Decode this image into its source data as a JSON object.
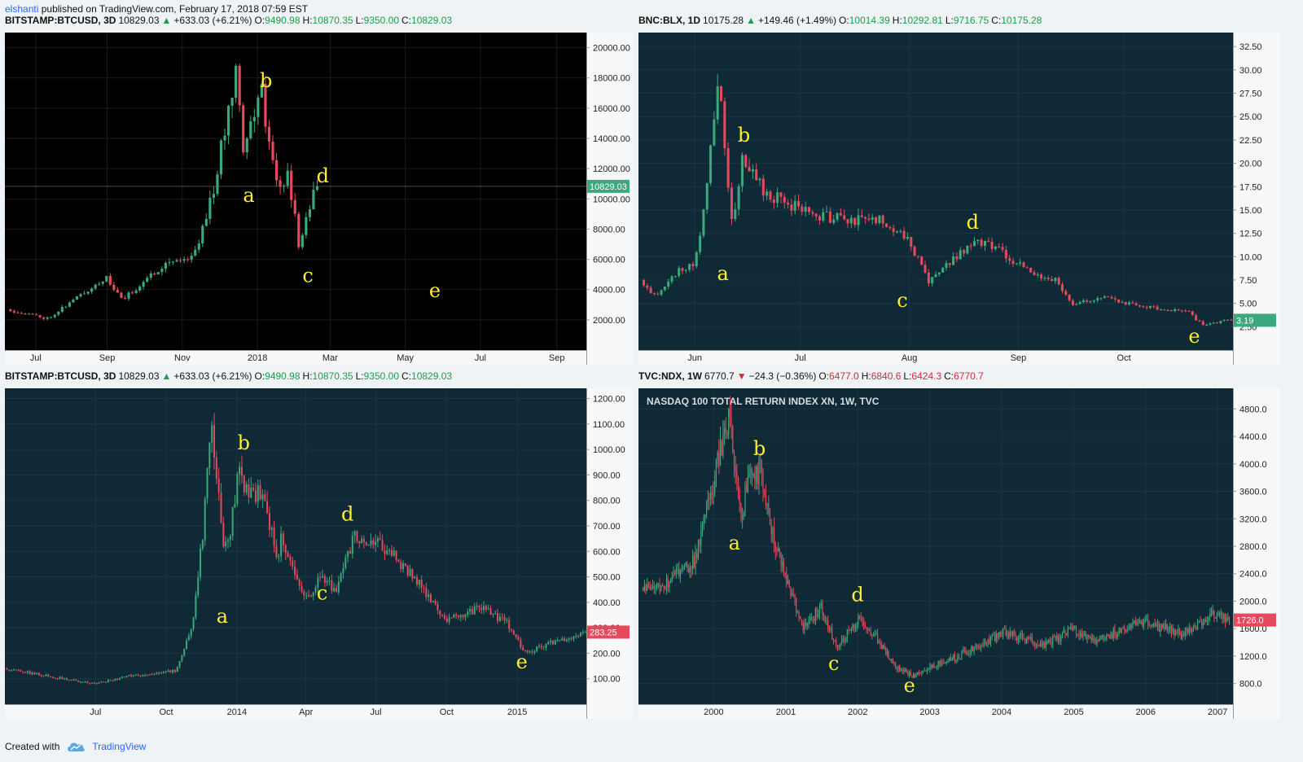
{
  "header": {
    "user": "elshanti",
    "rest": "published on TradingView.com, February 17, 2018 07:59 EST"
  },
  "footer": {
    "created": "Created with",
    "brand": "TradingView",
    "logo_icon": "tradingview-cloud-icon"
  },
  "panels": [
    {
      "id": "btc2018",
      "legend": {
        "symbol": "BITSTAMP:BTCUSD, 3D",
        "last": "10829.03",
        "change": "+633.03 (+6.21%)",
        "dir": "up",
        "o_label": "O:",
        "o": "9490.98",
        "h_label": "H:",
        "h": "10870.35",
        "l_label": "L:",
        "l": "9350.00",
        "c_label": "C:",
        "c": "10829.03"
      },
      "watermark": "",
      "colors": {
        "bg": "#000000",
        "up": "#3aa97b",
        "down": "#e5495b",
        "grid": "#1b1b1b",
        "axis": "#d1d4dc",
        "axis_text": "#222222",
        "label": "#ffee33"
      },
      "last_price": "10829.03",
      "last_dir": "up",
      "chart_data": {
        "type": "candlestick",
        "ylim": [
          0,
          21000
        ],
        "x_domain": [
          "2017-06-10",
          "2018-09-25"
        ],
        "yticks": [
          "2000.00",
          "4000.00",
          "6000.00",
          "8000.00",
          "10000.00",
          "12000.00",
          "14000.00",
          "16000.00",
          "18000.00",
          "20000.00"
        ],
        "xticks": [
          {
            "t": "2017-07-05",
            "label": "Jul"
          },
          {
            "t": "2017-09-01",
            "label": "Sep"
          },
          {
            "t": "2017-11-01",
            "label": "Nov"
          },
          {
            "t": "2018-01-01",
            "label": "2018"
          },
          {
            "t": "2018-03-01",
            "label": "Mar"
          },
          {
            "t": "2018-05-01",
            "label": "May"
          },
          {
            "t": "2018-07-01",
            "label": "Jul"
          },
          {
            "t": "2018-09-01",
            "label": "Sep"
          }
        ],
        "series_start": "2017-06-13",
        "series_end": "2018-02-17",
        "candle_days": 3,
        "anchors": [
          [
            "2017-06-13",
            2700
          ],
          [
            "2017-07-16",
            2100
          ],
          [
            "2017-08-20",
            4100
          ],
          [
            "2017-09-01",
            4800
          ],
          [
            "2017-09-15",
            3300
          ],
          [
            "2017-10-20",
            5800
          ],
          [
            "2017-11-12",
            6200
          ],
          [
            "2017-11-29",
            11000
          ],
          [
            "2017-12-17",
            19200
          ],
          [
            "2017-12-22",
            13500
          ],
          [
            "2018-01-06",
            17100
          ],
          [
            "2018-01-17",
            11000
          ],
          [
            "2018-01-28",
            11500
          ],
          [
            "2018-02-06",
            6400
          ],
          [
            "2018-02-10",
            8600
          ],
          [
            "2018-02-14",
            9500
          ],
          [
            "2018-02-17",
            10829
          ]
        ],
        "labels": [
          {
            "t": "a",
            "x": "2017-12-25",
            "y": 9800
          },
          {
            "t": "b",
            "x": "2018-01-08",
            "y": 17400
          },
          {
            "t": "c",
            "x": "2018-02-11",
            "y": 4500
          },
          {
            "t": "d",
            "x": "2018-02-23",
            "y": 11100
          },
          {
            "t": "e",
            "x": "2018-05-25",
            "y": 3500
          }
        ],
        "seed": 11
      }
    },
    {
      "id": "blx",
      "legend": {
        "symbol": "BNC:BLX, 1D",
        "last": "10175.28",
        "change": "+149.46 (+1.49%)",
        "dir": "up",
        "o_label": "O:",
        "o": "10014.39",
        "h_label": "H:",
        "h": "10292.81",
        "l_label": "L:",
        "l": "9716.75",
        "c_label": "C:",
        "c": "10175.28"
      },
      "watermark": "",
      "colors": {
        "bg": "#0f2a36",
        "up": "#3aa97b",
        "down": "#e5495b",
        "grid": "#1a3644",
        "axis": "#d1d4dc",
        "axis_text": "#222222",
        "label": "#ffee33"
      },
      "last_price": "3.19",
      "last_dir": "up",
      "chart_data": {
        "type": "candlestick",
        "ylim": [
          0,
          34
        ],
        "x_domain": [
          "2017-05-16",
          "2017-11-01"
        ],
        "yticks": [
          "2.50",
          "5.00",
          "7.50",
          "10.00",
          "12.50",
          "15.00",
          "17.50",
          "20.00",
          "22.50",
          "25.00",
          "27.50",
          "30.00",
          "32.50"
        ],
        "xticks": [
          {
            "t": "2017-06-01",
            "label": "Jun"
          },
          {
            "t": "2017-07-01",
            "label": "Jul"
          },
          {
            "t": "2017-08-01",
            "label": "Aug"
          },
          {
            "t": "2017-09-01",
            "label": "Sep"
          },
          {
            "t": "2017-10-01",
            "label": "Oct"
          }
        ],
        "series_start": "2017-05-17",
        "series_end": "2017-10-31",
        "candle_days": 1,
        "anchors": [
          [
            "2017-05-17",
            7.5
          ],
          [
            "2017-05-21",
            5.8
          ],
          [
            "2017-05-28",
            8.5
          ],
          [
            "2017-06-01",
            9.0
          ],
          [
            "2017-06-04",
            14.5
          ],
          [
            "2017-06-08",
            29.5
          ],
          [
            "2017-06-12",
            13.5
          ],
          [
            "2017-06-15",
            20.0
          ],
          [
            "2017-06-22",
            16.8
          ],
          [
            "2017-07-03",
            14.8
          ],
          [
            "2017-07-15",
            13.8
          ],
          [
            "2017-07-25",
            14.0
          ],
          [
            "2017-08-01",
            12.0
          ],
          [
            "2017-08-07",
            7.2
          ],
          [
            "2017-08-13",
            9.5
          ],
          [
            "2017-08-20",
            11.5
          ],
          [
            "2017-08-24",
            11.5
          ],
          [
            "2017-09-04",
            8.5
          ],
          [
            "2017-09-12",
            7.5
          ],
          [
            "2017-09-17",
            4.8
          ],
          [
            "2017-09-25",
            5.8
          ],
          [
            "2017-10-05",
            4.8
          ],
          [
            "2017-10-20",
            4.0
          ],
          [
            "2017-10-24",
            2.6
          ],
          [
            "2017-10-28",
            3.0
          ],
          [
            "2017-10-31",
            3.19
          ]
        ],
        "labels": [
          {
            "t": "a",
            "x": "2017-06-09",
            "y": 7.5
          },
          {
            "t": "b",
            "x": "2017-06-15",
            "y": 22.3
          },
          {
            "t": "c",
            "x": "2017-07-30",
            "y": 4.6
          },
          {
            "t": "d",
            "x": "2017-08-19",
            "y": 13.0
          },
          {
            "t": "e",
            "x": "2017-10-21",
            "y": 0.8
          }
        ],
        "seed": 23
      }
    },
    {
      "id": "btc2014",
      "legend": {
        "symbol": "BITSTAMP:BTCUSD, 3D",
        "last": "10829.03",
        "change": "+633.03 (+6.21%)",
        "dir": "up",
        "o_label": "O:",
        "o": "9490.98",
        "h_label": "H:",
        "h": "10870.35",
        "l_label": "L:",
        "l": "9350.00",
        "c_label": "C:",
        "c": "10829.03"
      },
      "watermark": "",
      "colors": {
        "bg": "#0f2a36",
        "up": "#3aa97b",
        "down": "#e5495b",
        "grid": "#1a3644",
        "axis": "#d1d4dc",
        "axis_text": "#222222",
        "label": "#ffee33"
      },
      "last_price": "283.25",
      "last_dir": "down",
      "chart_data": {
        "type": "candlestick",
        "ylim": [
          0,
          1240
        ],
        "x_domain": [
          "2013-03-05",
          "2015-04-01"
        ],
        "yticks": [
          "100.00",
          "200.00",
          "300.00",
          "400.00",
          "500.00",
          "600.00",
          "700.00",
          "800.00",
          "900.00",
          "1000.00",
          "1100.00",
          "1200.00"
        ],
        "xticks": [
          {
            "t": "2013-07-01",
            "label": "Jul"
          },
          {
            "t": "2013-10-01",
            "label": "Oct"
          },
          {
            "t": "2014-01-01",
            "label": "2014"
          },
          {
            "t": "2014-04-01",
            "label": "Apr"
          },
          {
            "t": "2014-07-01",
            "label": "Jul"
          },
          {
            "t": "2014-10-01",
            "label": "Oct"
          },
          {
            "t": "2015-01-01",
            "label": "2015"
          }
        ],
        "series_start": "2013-03-06",
        "series_end": "2015-03-31",
        "candle_days": 3,
        "anchors": [
          [
            "2013-03-06",
            140
          ],
          [
            "2013-05-01",
            110
          ],
          [
            "2013-07-01",
            80
          ],
          [
            "2013-08-15",
            110
          ],
          [
            "2013-10-15",
            130
          ],
          [
            "2013-11-05",
            300
          ],
          [
            "2013-11-20",
            700
          ],
          [
            "2013-11-30",
            1130
          ],
          [
            "2013-12-15",
            650
          ],
          [
            "2013-12-22",
            620
          ],
          [
            "2014-01-05",
            920
          ],
          [
            "2014-01-15",
            830
          ],
          [
            "2014-02-05",
            820
          ],
          [
            "2014-02-25",
            580
          ],
          [
            "2014-03-01",
            650
          ],
          [
            "2014-03-25",
            450
          ],
          [
            "2014-04-10",
            420
          ],
          [
            "2014-04-20",
            510
          ],
          [
            "2014-05-12",
            440
          ],
          [
            "2014-06-05",
            670
          ],
          [
            "2014-06-15",
            620
          ],
          [
            "2014-07-01",
            640
          ],
          [
            "2014-07-20",
            600
          ],
          [
            "2014-08-20",
            500
          ],
          [
            "2014-09-20",
            380
          ],
          [
            "2014-10-05",
            330
          ],
          [
            "2014-11-15",
            380
          ],
          [
            "2014-12-20",
            320
          ],
          [
            "2015-01-14",
            200
          ],
          [
            "2015-02-15",
            240
          ],
          [
            "2015-03-31",
            283
          ]
        ],
        "labels": [
          {
            "t": "a",
            "x": "2013-12-13",
            "y": 320
          },
          {
            "t": "b",
            "x": "2014-01-10",
            "y": 1000
          },
          {
            "t": "c",
            "x": "2014-04-22",
            "y": 410
          },
          {
            "t": "d",
            "x": "2014-05-25",
            "y": 720
          },
          {
            "t": "e",
            "x": "2015-01-07",
            "y": 140
          }
        ],
        "seed": 37
      }
    },
    {
      "id": "ndx",
      "legend": {
        "symbol": "TVC:NDX, 1W",
        "last": "6770.7",
        "change": "−24.3 (−0.36%)",
        "dir": "down",
        "o_label": "O:",
        "o": "6477.0",
        "h_label": "H:",
        "h": "6840.6",
        "l_label": "L:",
        "l": "6424.3",
        "c_label": "C:",
        "c": "6770.7"
      },
      "watermark": "NASDAQ 100 TOTAL RETURN INDEX XN, 1W, TVC",
      "colors": {
        "bg": "#0f2a36",
        "up": "#3aa97b",
        "down": "#e5495b",
        "grid": "#1a3644",
        "axis": "#d1d4dc",
        "axis_text": "#222222",
        "label": "#ffee33"
      },
      "last_price": "1726.0",
      "last_dir": "down",
      "chart_data": {
        "type": "candlestick",
        "ylim": [
          500,
          5100
        ],
        "x_domain": [
          "1998-12-15",
          "2007-03-20"
        ],
        "yticks": [
          "800.0",
          "1200.0",
          "1600.0",
          "2000.0",
          "2400.0",
          "2800.0",
          "3200.0",
          "3600.0",
          "4000.0",
          "4400.0",
          "4800.0"
        ],
        "xticks": [
          {
            "t": "2000-01-01",
            "label": "2000"
          },
          {
            "t": "2001-01-01",
            "label": "2001"
          },
          {
            "t": "2002-01-01",
            "label": "2002"
          },
          {
            "t": "2003-01-01",
            "label": "2003"
          },
          {
            "t": "2004-01-01",
            "label": "2004"
          },
          {
            "t": "2005-01-01",
            "label": "2005"
          },
          {
            "t": "2006-01-01",
            "label": "2006"
          },
          {
            "t": "2007-01-01",
            "label": "2007"
          }
        ],
        "series_start": "1999-01-04",
        "series_end": "2007-02-26",
        "candle_days": 7,
        "anchors": [
          [
            "1999-01-04",
            2200
          ],
          [
            "1999-06-01",
            2300
          ],
          [
            "1999-10-01",
            2600
          ],
          [
            "2000-01-01",
            3700
          ],
          [
            "2000-03-20",
            4700
          ],
          [
            "2000-05-20",
            3200
          ],
          [
            "2000-07-01",
            3800
          ],
          [
            "2000-09-05",
            3900
          ],
          [
            "2000-10-15",
            3100
          ],
          [
            "2000-12-31",
            2400
          ],
          [
            "2001-04-01",
            1600
          ],
          [
            "2001-07-01",
            1900
          ],
          [
            "2001-09-21",
            1300
          ],
          [
            "2002-01-05",
            1750
          ],
          [
            "2002-04-01",
            1500
          ],
          [
            "2002-07-20",
            1050
          ],
          [
            "2002-10-10",
            900
          ],
          [
            "2003-01-15",
            1050
          ],
          [
            "2003-06-01",
            1200
          ],
          [
            "2004-01-20",
            1550
          ],
          [
            "2004-08-10",
            1350
          ],
          [
            "2005-01-01",
            1600
          ],
          [
            "2005-04-20",
            1420
          ],
          [
            "2006-01-01",
            1700
          ],
          [
            "2006-07-15",
            1500
          ],
          [
            "2006-11-20",
            1800
          ],
          [
            "2007-02-26",
            1726
          ]
        ],
        "labels": [
          {
            "t": "a",
            "x": "2000-04-15",
            "y": 2750
          },
          {
            "t": "b",
            "x": "2000-08-20",
            "y": 4130
          },
          {
            "t": "c",
            "x": "2001-09-01",
            "y": 1000
          },
          {
            "t": "d",
            "x": "2001-12-31",
            "y": 2000
          },
          {
            "t": "e",
            "x": "2002-09-20",
            "y": 680
          }
        ],
        "seed": 53
      }
    }
  ]
}
